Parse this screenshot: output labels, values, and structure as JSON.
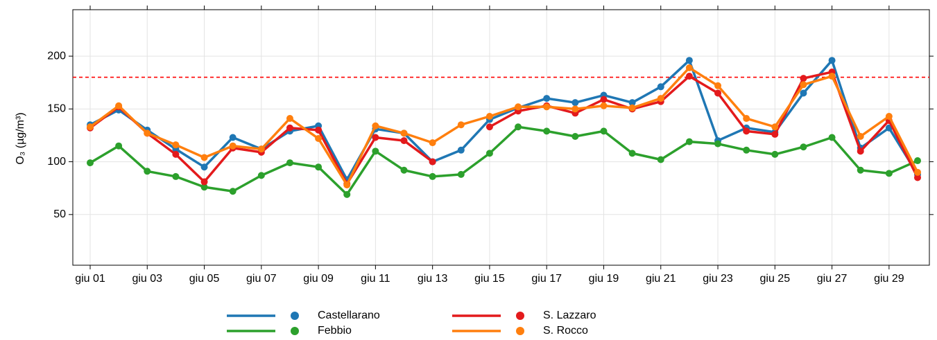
{
  "chart_data": {
    "type": "line",
    "y_label": "O₃ (µg/m³)",
    "categories": [
      "giu 01",
      null,
      "giu 03",
      null,
      "giu 05",
      null,
      "giu 07",
      null,
      "giu 09",
      null,
      "giu 11",
      null,
      "giu 13",
      null,
      "giu 15",
      null,
      "giu 17",
      null,
      "giu 19",
      null,
      "giu 21",
      null,
      "giu 23",
      null,
      "giu 25",
      null,
      "giu 27",
      null,
      "giu 29",
      null
    ],
    "series": [
      {
        "name": "Castellarano",
        "color": "#1f77b4",
        "values": [
          135,
          149,
          130,
          112,
          95,
          123,
          112,
          129,
          134,
          83,
          131,
          127,
          100,
          111,
          140,
          151,
          160,
          156,
          163,
          156,
          171,
          196,
          120,
          132,
          128,
          165,
          196,
          113,
          132,
          88
        ]
      },
      {
        "name": "Febbio",
        "color": "#2ca02c",
        "values": [
          99,
          115,
          91,
          86,
          76,
          72,
          87,
          99,
          95,
          69,
          110,
          92,
          86,
          88,
          108,
          133,
          129,
          124,
          129,
          108,
          102,
          119,
          117,
          111,
          107,
          114,
          123,
          92,
          89,
          101
        ]
      },
      {
        "name": "S. Lazzaro",
        "color": "#e31a1c",
        "values": [
          132,
          152,
          127,
          107,
          81,
          113,
          109,
          132,
          130,
          79,
          123,
          120,
          100,
          null,
          133,
          148,
          153,
          146,
          159,
          150,
          157,
          181,
          165,
          129,
          126,
          179,
          185,
          110,
          139,
          85
        ]
      },
      {
        "name": "S. Rocco",
        "color": "#ff7f0e",
        "values": [
          133,
          153,
          127,
          116,
          104,
          115,
          112,
          141,
          122,
          78,
          134,
          127,
          118,
          135,
          143,
          152,
          152,
          150,
          153,
          151,
          160,
          189,
          172,
          141,
          133,
          173,
          181,
          124,
          143,
          90
        ]
      }
    ],
    "ylim": [
      2,
      244
    ],
    "yticks": [
      50,
      100,
      150,
      200
    ],
    "grid": true,
    "threshold": 180,
    "threshold_color": "#ff0000",
    "legend": "bottom"
  }
}
